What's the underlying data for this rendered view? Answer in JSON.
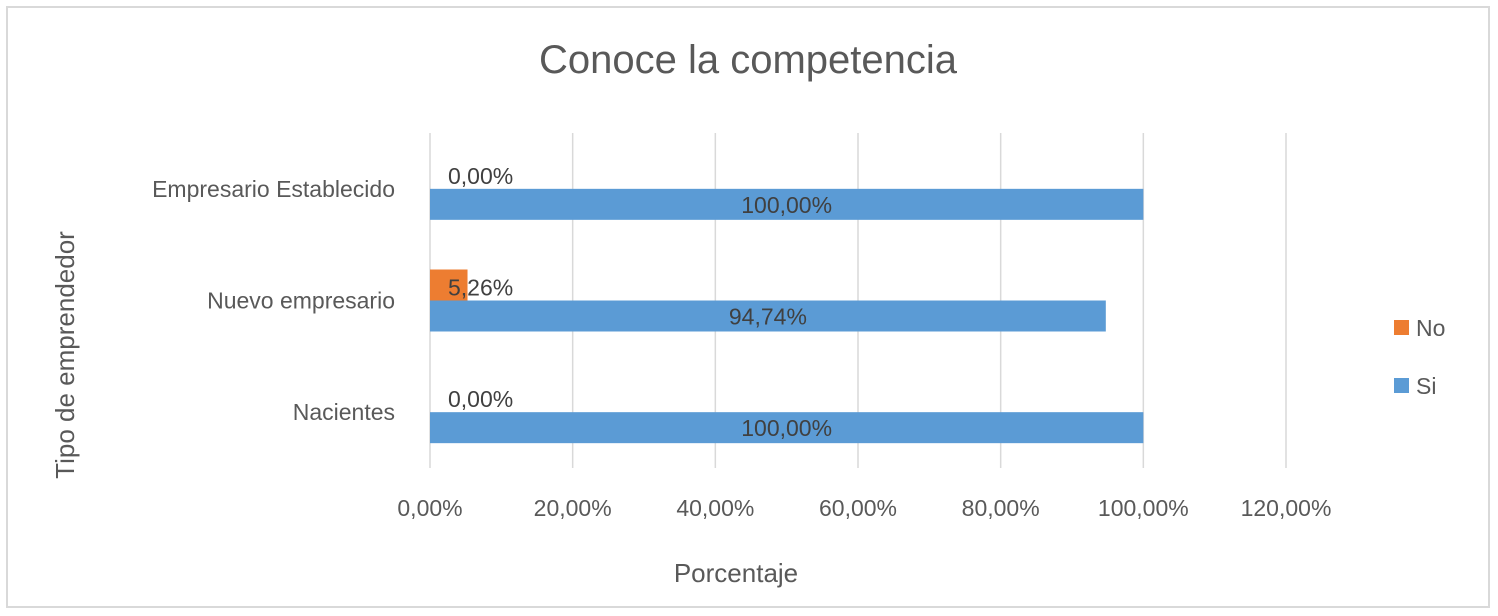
{
  "chart_data": {
    "type": "bar",
    "orientation": "horizontal",
    "title": "Conoce la competencia",
    "xlabel": "Porcentaje",
    "ylabel": "Tipo de emprendedor",
    "categories": [
      "Nacientes",
      "Nuevo empresario",
      "Empresario Establecido"
    ],
    "series": [
      {
        "name": "Si",
        "values": [
          100.0,
          94.74,
          100.0
        ],
        "labels": [
          "100,00%",
          "94,74%",
          "100,00%"
        ],
        "color": "#5b9bd5"
      },
      {
        "name": "No",
        "values": [
          0.0,
          5.26,
          0.0
        ],
        "labels": [
          "0,00%",
          "5,26%",
          "0,00%"
        ],
        "color": "#ed7d31"
      }
    ],
    "xlim": [
      0,
      120
    ],
    "xticks": [
      "0,00%",
      "20,00%",
      "40,00%",
      "60,00%",
      "80,00%",
      "100,00%",
      "120,00%"
    ],
    "grid": true,
    "legend_position": "right"
  }
}
